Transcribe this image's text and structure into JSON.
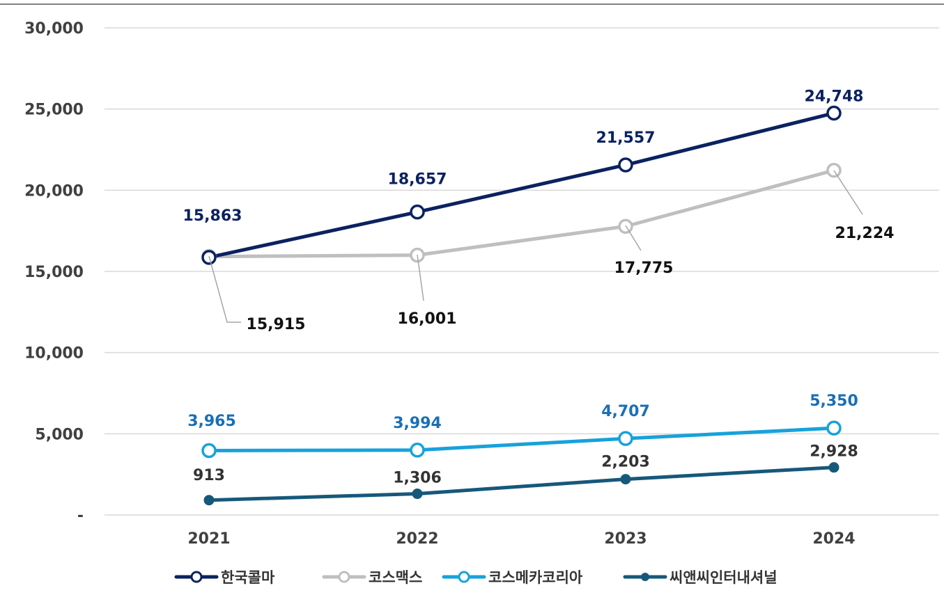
{
  "chart_data": {
    "type": "line",
    "title": "",
    "xlabel": "",
    "ylabel": "",
    "categories": [
      "2021",
      "2022",
      "2023",
      "2024"
    ],
    "ylim": [
      0,
      30000
    ],
    "yticks": [
      0,
      5000,
      10000,
      15000,
      20000,
      25000,
      30000
    ],
    "ytick_labels": [
      "-",
      "5,000",
      "10,000",
      "15,000",
      "20,000",
      "25,000",
      "30,000"
    ],
    "grid": true,
    "legend_position": "bottom",
    "series": [
      {
        "name": "한국콜마",
        "values": [
          15863,
          18657,
          21557,
          24748
        ],
        "labels": [
          "15,863",
          "18,657",
          "21,557",
          "24,748"
        ],
        "color": "#0b2260",
        "marker": "hollow",
        "label_color": "#0b2260"
      },
      {
        "name": "코스맥스",
        "values": [
          15915,
          16001,
          17775,
          21224
        ],
        "labels": [
          "15,915",
          "16,001",
          "17,775",
          "21,224"
        ],
        "color": "#bfbfbf",
        "marker": "hollow",
        "label_color": "#111111"
      },
      {
        "name": "코스메카코리아",
        "values": [
          3965,
          3994,
          4707,
          5350
        ],
        "labels": [
          "3,965",
          "3,994",
          "4,707",
          "5,350"
        ],
        "color": "#17a2db",
        "marker": "hollow",
        "label_color": "#1b6fb5"
      },
      {
        "name": "씨앤씨인터내셔널",
        "values": [
          913,
          1306,
          2203,
          2928
        ],
        "labels": [
          "913",
          "1,306",
          "2,203",
          "2,928"
        ],
        "color": "#16587a",
        "marker": "filled",
        "label_color": "#333333"
      }
    ]
  }
}
